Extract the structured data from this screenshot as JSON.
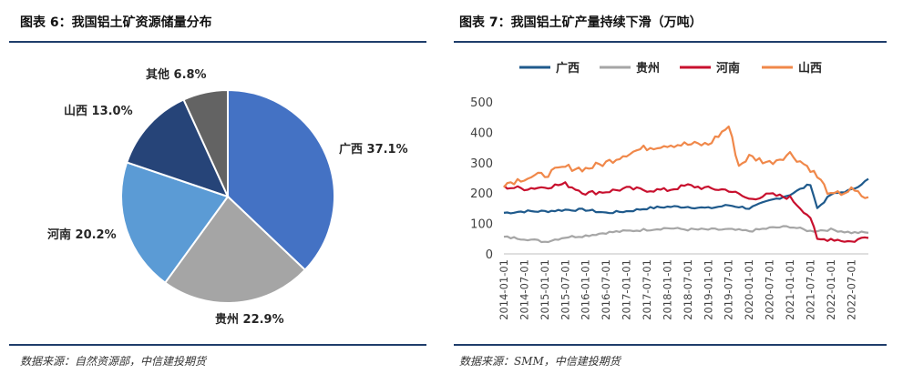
{
  "left": {
    "title": "图表 6：我国铝土矿资源储量分布",
    "source": "数据来源：自然资源部，中信建投期货"
  },
  "right": {
    "title": "图表 7：我国铝土矿产量持续下滑（万吨）",
    "source": "数据来源：SMM，中信建投期货"
  },
  "colors": {
    "guangxi": "#1f5a8c",
    "guizhou": "#a6a6a6",
    "henan": "#c8102e",
    "shanxi": "#f0884a",
    "pie_guangxi": "#4472c4",
    "pie_guizhou": "#a5a5a5",
    "pie_henan": "#5b9bd5",
    "pie_shanxi": "#264478",
    "pie_other": "#636363",
    "rule": "#1f3d6b"
  },
  "chart_data": [
    {
      "type": "pie",
      "title": "图表 6：我国铝土矿资源储量分布",
      "slices": [
        {
          "label": "广西 37.1%",
          "value": 37.1
        },
        {
          "label": "贵州 22.9%",
          "value": 22.9
        },
        {
          "label": "河南 20.2%",
          "value": 20.2
        },
        {
          "label": "山西 13.0%",
          "value": 13.0
        },
        {
          "label": "其他 6.8%",
          "value": 6.8
        }
      ]
    },
    {
      "type": "line",
      "title": "图表 7：我国铝土矿产量持续下滑（万吨）",
      "ylim": [
        0,
        500
      ],
      "yticks": [
        "0",
        "100",
        "200",
        "300",
        "400",
        "500"
      ],
      "xrange": [
        "2014-01",
        "2022-12"
      ],
      "xticks": [
        "2014-01-01",
        "2014-07-01",
        "2015-01-01",
        "2015-07-01",
        "2016-01-01",
        "2016-07-01",
        "2017-01-01",
        "2017-07-01",
        "2018-01-01",
        "2018-07-01",
        "2019-01-01",
        "2019-07-01",
        "2020-01-01",
        "2020-07-01",
        "2021-01-01",
        "2021-07-01",
        "2022-01-01",
        "2022-07-01"
      ],
      "legend": [
        "广西",
        "贵州",
        "河南",
        "山西"
      ],
      "legend_position": "top",
      "series": [
        {
          "name": "广西",
          "points": [
            [
              "2014-01",
              135
            ],
            [
              "2014-07",
              140
            ],
            [
              "2015-01",
              140
            ],
            [
              "2015-07",
              145
            ],
            [
              "2016-01",
              145
            ],
            [
              "2016-07",
              135
            ],
            [
              "2017-01",
              140
            ],
            [
              "2017-07",
              150
            ],
            [
              "2018-01",
              155
            ],
            [
              "2018-07",
              155
            ],
            [
              "2019-01",
              150
            ],
            [
              "2019-07",
              160
            ],
            [
              "2020-01",
              150
            ],
            [
              "2020-07",
              175
            ],
            [
              "2021-01",
              195
            ],
            [
              "2021-07",
              230
            ],
            [
              "2021-09",
              150
            ],
            [
              "2022-01",
              195
            ],
            [
              "2022-07",
              210
            ],
            [
              "2022-12",
              245
            ]
          ]
        },
        {
          "name": "贵州",
          "points": [
            [
              "2014-01",
              55
            ],
            [
              "2014-07",
              50
            ],
            [
              "2015-01",
              40
            ],
            [
              "2015-07",
              55
            ],
            [
              "2016-01",
              60
            ],
            [
              "2016-07",
              70
            ],
            [
              "2017-01",
              75
            ],
            [
              "2017-07",
              80
            ],
            [
              "2018-01",
              85
            ],
            [
              "2018-07",
              80
            ],
            [
              "2019-01",
              80
            ],
            [
              "2019-07",
              80
            ],
            [
              "2020-01",
              75
            ],
            [
              "2020-07",
              85
            ],
            [
              "2021-01",
              90
            ],
            [
              "2021-07",
              75
            ],
            [
              "2022-01",
              80
            ],
            [
              "2022-07",
              70
            ],
            [
              "2022-12",
              70
            ]
          ]
        },
        {
          "name": "河南",
          "points": [
            [
              "2014-01",
              220
            ],
            [
              "2014-07",
              215
            ],
            [
              "2015-01",
              220
            ],
            [
              "2015-07",
              230
            ],
            [
              "2016-01",
              200
            ],
            [
              "2016-07",
              205
            ],
            [
              "2017-01",
              215
            ],
            [
              "2017-07",
              210
            ],
            [
              "2018-01",
              210
            ],
            [
              "2018-07",
              225
            ],
            [
              "2019-01",
              215
            ],
            [
              "2019-07",
              210
            ],
            [
              "2020-01",
              180
            ],
            [
              "2020-07",
              195
            ],
            [
              "2021-01",
              185
            ],
            [
              "2021-07",
              120
            ],
            [
              "2021-09",
              45
            ],
            [
              "2022-01",
              50
            ],
            [
              "2022-07",
              40
            ],
            [
              "2022-12",
              58
            ]
          ]
        },
        {
          "name": "山西",
          "points": [
            [
              "2014-01",
              230
            ],
            [
              "2014-07",
              250
            ],
            [
              "2015-01",
              260
            ],
            [
              "2015-07",
              285
            ],
            [
              "2016-01",
              280
            ],
            [
              "2016-07",
              300
            ],
            [
              "2017-01",
              330
            ],
            [
              "2017-07",
              350
            ],
            [
              "2018-01",
              360
            ],
            [
              "2018-07",
              360
            ],
            [
              "2019-01",
              360
            ],
            [
              "2019-07",
              420
            ],
            [
              "2019-10",
              290
            ],
            [
              "2020-01",
              320
            ],
            [
              "2020-07",
              300
            ],
            [
              "2021-01",
              330
            ],
            [
              "2021-07",
              280
            ],
            [
              "2021-10",
              240
            ],
            [
              "2022-01",
              190
            ],
            [
              "2022-07",
              210
            ],
            [
              "2022-12",
              180
            ]
          ]
        }
      ]
    }
  ]
}
